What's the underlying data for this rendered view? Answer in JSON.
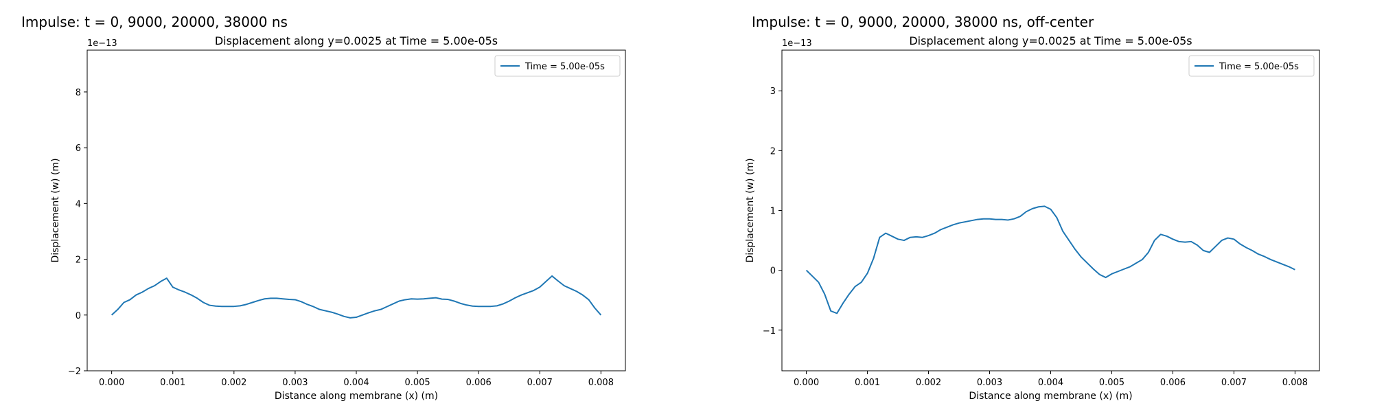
{
  "panels": [
    {
      "heading": "Impulse: t = 0, 9000, 20000, 38000 ns"
    },
    {
      "heading": "Impulse: t = 0, 9000, 20000, 38000 ns, off-center"
    }
  ],
  "chart_data": [
    {
      "type": "line",
      "title": "Displacement along y=0.0025 at Time = 5.00e-05s",
      "xlabel": "Distance along membrane (x) (m)",
      "ylabel": "Displacement (w) (m)",
      "offset_text": "1e−13",
      "xlim": [
        -0.0004,
        0.0084
      ],
      "ylim": [
        -2,
        9.5
      ],
      "xticks": [
        0,
        0.001,
        0.002,
        0.003,
        0.004,
        0.005,
        0.006,
        0.007,
        0.008
      ],
      "xtick_labels": [
        "0.000",
        "0.001",
        "0.002",
        "0.003",
        "0.004",
        "0.005",
        "0.006",
        "0.007",
        "0.008"
      ],
      "yticks": [
        -2,
        0,
        2,
        4,
        6,
        8
      ],
      "ytick_labels": [
        "−2",
        "0",
        "2",
        "4",
        "6",
        "8"
      ],
      "legend_position": "top-right",
      "series": [
        {
          "name": "Time = 5.00e-05s",
          "color": "#1f77b4",
          "x": [
            0,
            0.0001,
            0.0002,
            0.0003,
            0.0004,
            0.0005,
            0.0006,
            0.0007,
            0.0008,
            0.0009,
            0.001,
            0.0011,
            0.0012,
            0.0013,
            0.0014,
            0.0015,
            0.0016,
            0.0017,
            0.0018,
            0.0019,
            0.002,
            0.0021,
            0.0022,
            0.0023,
            0.0024,
            0.0025,
            0.0026,
            0.0027,
            0.0028,
            0.0029,
            0.003,
            0.0031,
            0.0032,
            0.0033,
            0.0034,
            0.0035,
            0.0036,
            0.0037,
            0.0038,
            0.0039,
            0.004,
            0.0041,
            0.0042,
            0.0043,
            0.0044,
            0.0045,
            0.0046,
            0.0047,
            0.0048,
            0.0049,
            0.005,
            0.0051,
            0.0052,
            0.0053,
            0.0054,
            0.0055,
            0.0056,
            0.0057,
            0.0058,
            0.0059,
            0.006,
            0.0061,
            0.0062,
            0.0063,
            0.0064,
            0.0065,
            0.0066,
            0.0067,
            0.0068,
            0.0069,
            0.007,
            0.0071,
            0.0072,
            0.0073,
            0.0074,
            0.0075,
            0.0076,
            0.0077,
            0.0078,
            0.0079,
            0.008
          ],
          "y": [
            0,
            0.2,
            0.45,
            0.55,
            0.72,
            0.82,
            0.95,
            1.05,
            1.2,
            1.32,
            1.0,
            0.9,
            0.82,
            0.72,
            0.6,
            0.45,
            0.35,
            0.32,
            0.31,
            0.31,
            0.31,
            0.33,
            0.38,
            0.45,
            0.52,
            0.58,
            0.6,
            0.6,
            0.58,
            0.56,
            0.55,
            0.48,
            0.38,
            0.3,
            0.2,
            0.15,
            0.1,
            0.03,
            -0.05,
            -0.1,
            -0.08,
            0.0,
            0.08,
            0.15,
            0.2,
            0.3,
            0.4,
            0.5,
            0.55,
            0.58,
            0.57,
            0.58,
            0.6,
            0.62,
            0.57,
            0.56,
            0.5,
            0.42,
            0.36,
            0.32,
            0.31,
            0.31,
            0.31,
            0.33,
            0.4,
            0.5,
            0.62,
            0.72,
            0.8,
            0.88,
            1.0,
            1.2,
            1.4,
            1.22,
            1.05,
            0.95,
            0.85,
            0.72,
            0.55,
            0.25,
            0.0
          ]
        }
      ]
    },
    {
      "type": "line",
      "title": "Displacement along y=0.0025 at Time = 5.00e-05s",
      "xlabel": "Distance along membrane (x) (m)",
      "ylabel": "Displacement (w) (m)",
      "offset_text": "1e−13",
      "xlim": [
        -0.0004,
        0.0084
      ],
      "ylim": [
        -1.68,
        3.68
      ],
      "xticks": [
        0,
        0.001,
        0.002,
        0.003,
        0.004,
        0.005,
        0.006,
        0.007,
        0.008
      ],
      "xtick_labels": [
        "0.000",
        "0.001",
        "0.002",
        "0.003",
        "0.004",
        "0.005",
        "0.006",
        "0.007",
        "0.008"
      ],
      "yticks": [
        -1,
        0,
        1,
        2,
        3
      ],
      "ytick_labels": [
        "−1",
        "0",
        "1",
        "2",
        "3"
      ],
      "legend_position": "top-right",
      "series": [
        {
          "name": "Time = 5.00e-05s",
          "color": "#1f77b4",
          "x": [
            0,
            0.0001,
            0.0002,
            0.0003,
            0.0004,
            0.0005,
            0.0006,
            0.0007,
            0.0008,
            0.0009,
            0.001,
            0.0011,
            0.0012,
            0.0013,
            0.0014,
            0.0015,
            0.0016,
            0.0017,
            0.0018,
            0.0019,
            0.002,
            0.0021,
            0.0022,
            0.0023,
            0.0024,
            0.0025,
            0.0026,
            0.0027,
            0.0028,
            0.0029,
            0.003,
            0.0031,
            0.0032,
            0.0033,
            0.0034,
            0.0035,
            0.0036,
            0.0037,
            0.0038,
            0.0039,
            0.004,
            0.0041,
            0.0042,
            0.0043,
            0.0044,
            0.0045,
            0.0046,
            0.0047,
            0.0048,
            0.0049,
            0.005,
            0.0051,
            0.0052,
            0.0053,
            0.0054,
            0.0055,
            0.0056,
            0.0057,
            0.0058,
            0.0059,
            0.006,
            0.0061,
            0.0062,
            0.0063,
            0.0064,
            0.0065,
            0.0066,
            0.0067,
            0.0068,
            0.0069,
            0.007,
            0.0071,
            0.0072,
            0.0073,
            0.0074,
            0.0075,
            0.0076,
            0.0077,
            0.0078,
            0.0079,
            0.008
          ],
          "y": [
            0,
            -0.1,
            -0.2,
            -0.4,
            -0.68,
            -0.72,
            -0.55,
            -0.4,
            -0.27,
            -0.2,
            -0.05,
            0.2,
            0.55,
            0.62,
            0.57,
            0.52,
            0.5,
            0.55,
            0.56,
            0.55,
            0.58,
            0.62,
            0.68,
            0.72,
            0.76,
            0.79,
            0.81,
            0.83,
            0.85,
            0.86,
            0.86,
            0.85,
            0.85,
            0.84,
            0.86,
            0.9,
            0.98,
            1.03,
            1.06,
            1.07,
            1.02,
            0.88,
            0.65,
            0.5,
            0.35,
            0.22,
            0.12,
            0.02,
            -0.07,
            -0.12,
            -0.06,
            -0.02,
            0.02,
            0.06,
            0.12,
            0.18,
            0.3,
            0.5,
            0.6,
            0.57,
            0.52,
            0.48,
            0.47,
            0.48,
            0.42,
            0.33,
            0.3,
            0.4,
            0.5,
            0.54,
            0.52,
            0.44,
            0.38,
            0.33,
            0.27,
            0.23,
            0.18,
            0.14,
            0.1,
            0.06,
            0.01
          ]
        }
      ]
    }
  ]
}
